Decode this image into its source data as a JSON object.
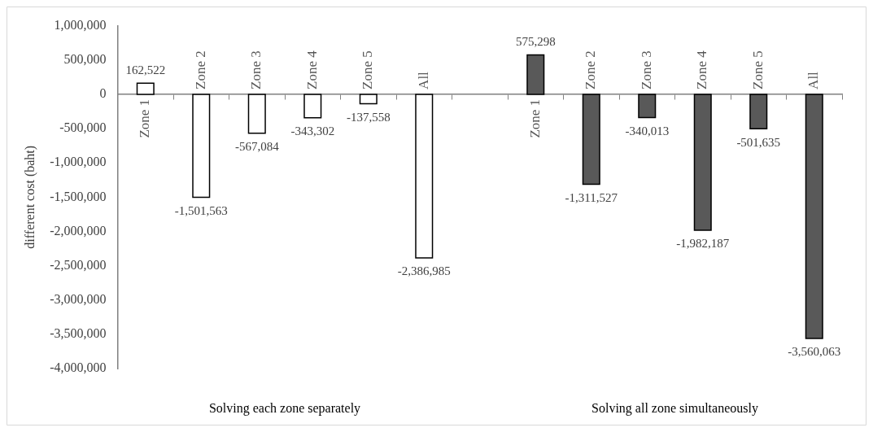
{
  "chart_data": {
    "type": "bar",
    "ylabel": "different cost (baht)",
    "categories": [
      "Zone 1",
      "Zone 2",
      "Zone 3",
      "Zone 4",
      "Zone 5",
      "All",
      null,
      "Zone 1",
      "Zone 2",
      "Zone 3",
      "Zone 4",
      "Zone 5",
      "All"
    ],
    "series": [
      {
        "color": "#ffffff",
        "values": [
          162522,
          -1501563,
          -567084,
          -343302,
          -137558,
          -2386985,
          null,
          null,
          null,
          null,
          null,
          null,
          null
        ],
        "value_labels": [
          "162,522",
          "-1,501,563",
          "-567,084",
          "-343,302",
          "-137,558",
          "-2,386,985",
          null,
          null,
          null,
          null,
          null,
          null,
          null
        ]
      },
      {
        "color": "#595959",
        "values": [
          null,
          null,
          null,
          null,
          null,
          null,
          null,
          575298,
          -1311527,
          -340013,
          -1982187,
          -501635,
          -3560063
        ],
        "value_labels": [
          null,
          null,
          null,
          null,
          null,
          null,
          null,
          "575,298",
          "-1,311,527",
          "-340,013",
          "-1,982,187",
          "-501,635",
          "-3,560,063"
        ]
      }
    ],
    "ylim": [
      -4000000,
      1000000
    ],
    "yticks": [
      {
        "value": 1000000,
        "label": "1,000,000"
      },
      {
        "value": 500000,
        "label": "500,000"
      },
      0,
      {
        "value": -500000,
        "label": "-500,000"
      },
      {
        "value": -1000000,
        "label": "-1,000,000"
      },
      {
        "value": -1500000,
        "label": "-1,500,000"
      },
      {
        "value": -2000000,
        "label": "-2,000,000"
      },
      {
        "value": -2500000,
        "label": "-2,500,000"
      },
      {
        "value": -3000000,
        "label": "-3,000,000"
      },
      {
        "value": -3500000,
        "label": "-3,500,000"
      },
      {
        "value": -4000000,
        "label": "-4,000,000"
      }
    ],
    "grid": false,
    "legend": false,
    "annotations": [
      "Solving each zone separately",
      "Solving all zone simultaneously"
    ]
  }
}
